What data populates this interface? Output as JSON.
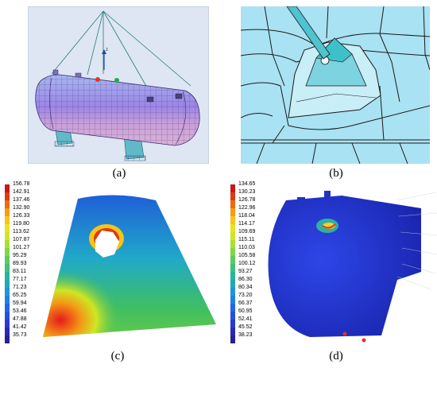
{
  "captions": {
    "a": "(a)",
    "b": "(b)",
    "c": "(c)",
    "d": "(d)"
  },
  "panel_a": {
    "axis_label": "z"
  },
  "legend_c": {
    "values": [
      "156.78",
      "142.91",
      "137.46",
      "132.90",
      "126.33",
      "119.80",
      "113.62",
      "107.87",
      "101.27",
      "95.29",
      "89.93",
      "83.11",
      "77.17",
      "71.23",
      "65.25",
      "59.94",
      "53.46",
      "47.88",
      "41.42",
      "35.73"
    ]
  },
  "legend_d": {
    "values": [
      "134.65",
      "130.23",
      "126.78",
      "122.96",
      "118.04",
      "114.17",
      "109.69",
      "115.11",
      "110.03",
      "105.58",
      "100.12",
      "93.27",
      "86.30",
      "80.34",
      "73.20",
      "66.37",
      "60.95",
      "52.41",
      "45.52",
      "38.23"
    ]
  },
  "legend_colors": [
    "#c81818",
    "#e03a10",
    "#f06a10",
    "#f79a14",
    "#f7c418",
    "#eae21e",
    "#cfe626",
    "#a9e032",
    "#82d644",
    "#5ecb58",
    "#40c07a",
    "#2ab49c",
    "#20a8bc",
    "#1f96d6",
    "#2080e6",
    "#2266ea",
    "#2450e0",
    "#2a3ad0",
    "#2a28b8",
    "#26209a"
  ]
}
